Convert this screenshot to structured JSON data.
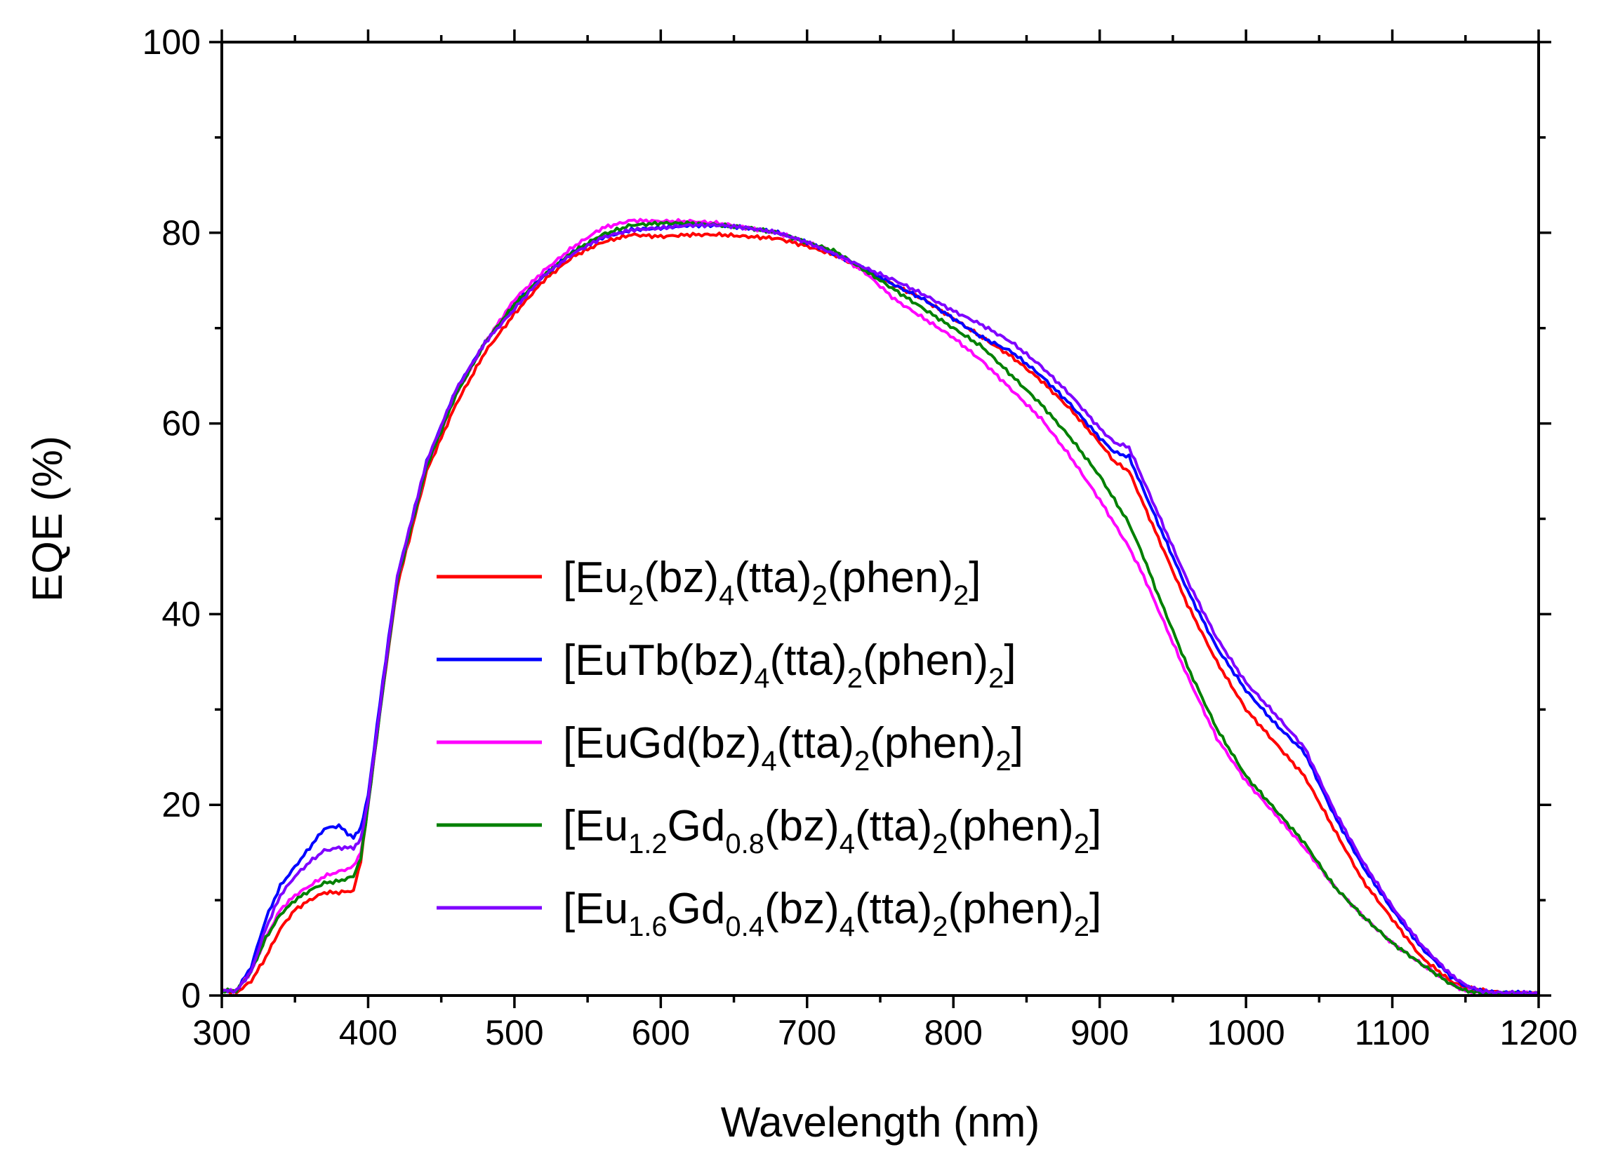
{
  "chart_data": {
    "type": "line",
    "title": "",
    "xlabel": "Wavelength (nm)",
    "ylabel": "EQE (%)",
    "xlim": [
      300,
      1200
    ],
    "ylim": [
      0,
      100
    ],
    "x_ticks": [
      "300",
      "400",
      "500",
      "600",
      "700",
      "800",
      "900",
      "1000",
      "1100",
      "1200"
    ],
    "y_ticks": [
      "0",
      "20",
      "40",
      "60",
      "80",
      "100"
    ],
    "grid": false,
    "legend_position": "center",
    "series": [
      {
        "name": "[Eu2(bz)4(tta)2(phen)2]",
        "legend_parts": [
          [
            "[Eu",
            "n"
          ],
          [
            "2",
            "sub"
          ],
          [
            "(bz)",
            "n"
          ],
          [
            "4",
            "sub"
          ],
          [
            "(tta)",
            "n"
          ],
          [
            "2",
            "sub"
          ],
          [
            "(phen)",
            "n"
          ],
          [
            "2",
            "sub"
          ],
          [
            "]",
            "n"
          ]
        ],
        "color": "#ff0000",
        "x": [
          300,
          310,
          320,
          330,
          340,
          350,
          360,
          370,
          380,
          390,
          395,
          400,
          410,
          420,
          440,
          460,
          480,
          500,
          520,
          540,
          560,
          580,
          600,
          620,
          640,
          660,
          680,
          700,
          720,
          740,
          760,
          780,
          800,
          820,
          840,
          860,
          880,
          900,
          910,
          920,
          930,
          940,
          960,
          980,
          1000,
          1020,
          1040,
          1060,
          1080,
          1100,
          1120,
          1140,
          1150,
          1160,
          1170,
          1180,
          1200
        ],
        "y": [
          0.5,
          0.3,
          1.5,
          4,
          7,
          9,
          10,
          10.8,
          10.8,
          11,
          14,
          20,
          32,
          43,
          55,
          62,
          67.5,
          71.5,
          75,
          77.5,
          79,
          79.8,
          79.6,
          79.8,
          79.8,
          79.6,
          79.4,
          78.6,
          77.6,
          76,
          74.5,
          73,
          71,
          69,
          67,
          64.5,
          61.5,
          58,
          56,
          55,
          51.5,
          48,
          41,
          35,
          30,
          26.5,
          23,
          17.5,
          12,
          8,
          4,
          1.5,
          0.8,
          0.6,
          0.4,
          0.2,
          0.3
        ]
      },
      {
        "name": "[EuTb(bz)4(tta)2(phen)2]",
        "legend_parts": [
          [
            "[EuTb(bz)",
            "n"
          ],
          [
            "4",
            "sub"
          ],
          [
            "(tta)",
            "n"
          ],
          [
            "2",
            "sub"
          ],
          [
            "(phen)",
            "n"
          ],
          [
            "2",
            "sub"
          ],
          [
            "]",
            "n"
          ]
        ],
        "color": "#0000ff",
        "x": [
          300,
          310,
          320,
          330,
          340,
          350,
          360,
          370,
          380,
          390,
          395,
          400,
          410,
          420,
          440,
          460,
          480,
          500,
          520,
          540,
          560,
          580,
          600,
          620,
          640,
          660,
          680,
          700,
          720,
          740,
          760,
          780,
          800,
          820,
          840,
          860,
          880,
          900,
          910,
          920,
          930,
          940,
          960,
          980,
          1000,
          1020,
          1040,
          1060,
          1080,
          1100,
          1120,
          1140,
          1150,
          1160,
          1170,
          1180,
          1200
        ],
        "y": [
          0.5,
          0.5,
          3,
          8,
          11.5,
          13.5,
          15.5,
          17.5,
          17.8,
          16.5,
          17.5,
          21,
          33,
          44,
          56,
          63.5,
          68.5,
          72.5,
          75.5,
          78,
          79.5,
          80.3,
          80.5,
          80.8,
          80.8,
          80.5,
          80,
          79,
          77.7,
          76.2,
          74.5,
          73,
          71,
          69,
          67.5,
          65,
          62,
          58.5,
          57,
          56.5,
          53,
          49.5,
          42.5,
          36.5,
          32,
          28.5,
          25.5,
          19,
          13.5,
          9,
          5,
          2,
          1,
          0.5,
          0.3,
          0.3,
          0.2
        ]
      },
      {
        "name": "[EuGd(bz)4(tta)2(phen)2]",
        "legend_parts": [
          [
            "[EuGd(bz)",
            "n"
          ],
          [
            "4",
            "sub"
          ],
          [
            "(tta)",
            "n"
          ],
          [
            "2",
            "sub"
          ],
          [
            "(phen)",
            "n"
          ],
          [
            "2",
            "sub"
          ],
          [
            "]",
            "n"
          ]
        ],
        "color": "#ff00ff",
        "x": [
          300,
          310,
          320,
          330,
          340,
          350,
          360,
          370,
          380,
          390,
          395,
          400,
          410,
          420,
          440,
          460,
          480,
          500,
          520,
          540,
          560,
          580,
          600,
          620,
          640,
          660,
          680,
          700,
          720,
          740,
          760,
          780,
          800,
          820,
          840,
          860,
          880,
          900,
          910,
          920,
          930,
          940,
          960,
          980,
          1000,
          1020,
          1040,
          1060,
          1080,
          1100,
          1120,
          1140,
          1150,
          1160,
          1170,
          1180,
          1200
        ],
        "y": [
          0.5,
          0.5,
          2.5,
          6,
          9,
          10.5,
          11.5,
          12.5,
          13,
          13.5,
          15,
          20,
          32,
          43.5,
          55.5,
          63,
          68.5,
          73,
          76,
          78.5,
          80.5,
          81.3,
          81.2,
          81.2,
          81,
          80.5,
          80,
          79,
          77.8,
          75.8,
          73,
          71,
          69,
          66.5,
          63.5,
          60.5,
          56.5,
          52,
          49.5,
          47,
          44,
          40.5,
          33.5,
          27,
          22.5,
          19,
          15.5,
          11.5,
          8.3,
          5.5,
          3.3,
          1.2,
          0.5,
          0.3,
          0.2,
          0.2,
          0.2
        ]
      },
      {
        "name": "[Eu1.2Gd0.8(bz)4(tta)2(phen)2]",
        "legend_parts": [
          [
            "[Eu",
            "n"
          ],
          [
            "1.2",
            "sub"
          ],
          [
            "Gd",
            "n"
          ],
          [
            "0.8",
            "sub"
          ],
          [
            "(bz)",
            "n"
          ],
          [
            "4",
            "sub"
          ],
          [
            "(tta)",
            "n"
          ],
          [
            "2",
            "sub"
          ],
          [
            "(phen)",
            "n"
          ],
          [
            "2",
            "sub"
          ],
          [
            "]",
            "n"
          ]
        ],
        "color": "#008000",
        "x": [
          300,
          310,
          320,
          330,
          340,
          350,
          360,
          370,
          380,
          390,
          395,
          400,
          410,
          420,
          440,
          460,
          480,
          500,
          520,
          540,
          560,
          580,
          600,
          620,
          640,
          660,
          680,
          700,
          720,
          740,
          760,
          780,
          800,
          820,
          840,
          860,
          880,
          900,
          910,
          920,
          930,
          940,
          960,
          980,
          1000,
          1020,
          1040,
          1060,
          1080,
          1100,
          1120,
          1140,
          1150,
          1160,
          1170,
          1180,
          1200
        ],
        "y": [
          0.5,
          0.5,
          2.5,
          6,
          8.5,
          10,
          11,
          11.8,
          12,
          12.5,
          14.5,
          20,
          32,
          43.5,
          55.5,
          63,
          68.5,
          72.5,
          75.5,
          78,
          79.8,
          80.8,
          81,
          81,
          80.8,
          80.5,
          80,
          79,
          78,
          76,
          74,
          72,
          70,
          68,
          65,
          62,
          58.5,
          54.5,
          52,
          49.5,
          46,
          42,
          34.5,
          28,
          23,
          19.5,
          16,
          11.5,
          8.3,
          5.5,
          3.3,
          1.2,
          0.5,
          0.3,
          0.2,
          0.2,
          0.2
        ]
      },
      {
        "name": "[Eu1.6Gd0.4(bz)4(tta)2(phen)2]",
        "legend_parts": [
          [
            "[Eu",
            "n"
          ],
          [
            "1.6",
            "sub"
          ],
          [
            "Gd",
            "n"
          ],
          [
            "0.4",
            "sub"
          ],
          [
            "(bz)",
            "n"
          ],
          [
            "4",
            "sub"
          ],
          [
            "(tta)",
            "n"
          ],
          [
            "2",
            "sub"
          ],
          [
            "(phen)",
            "n"
          ],
          [
            "2",
            "sub"
          ],
          [
            "]",
            "n"
          ]
        ],
        "color": "#7f00ff",
        "x": [
          300,
          310,
          320,
          330,
          340,
          350,
          360,
          370,
          380,
          390,
          395,
          400,
          410,
          420,
          440,
          460,
          480,
          500,
          520,
          540,
          560,
          580,
          600,
          620,
          640,
          660,
          680,
          700,
          720,
          740,
          760,
          780,
          800,
          820,
          840,
          860,
          880,
          900,
          910,
          920,
          930,
          940,
          960,
          980,
          1000,
          1020,
          1040,
          1060,
          1080,
          1100,
          1120,
          1140,
          1150,
          1160,
          1170,
          1180,
          1200
        ],
        "y": [
          0.5,
          0.5,
          2.5,
          7,
          10.5,
          12.5,
          14,
          15.2,
          15.5,
          15.5,
          16.5,
          20.5,
          32.5,
          44,
          56,
          63.5,
          68.5,
          72,
          75.5,
          77.8,
          79.5,
          80.3,
          80.5,
          80.8,
          80.8,
          80.5,
          80,
          79,
          77.7,
          76.3,
          75,
          73.5,
          71.8,
          70.3,
          68.5,
          66,
          63,
          59.5,
          58,
          57.5,
          54,
          50.5,
          43.5,
          37.5,
          32.8,
          29.5,
          26,
          19.5,
          14,
          9.3,
          5.3,
          2.2,
          1.1,
          0.5,
          0.3,
          0.3,
          0.2
        ]
      }
    ]
  }
}
